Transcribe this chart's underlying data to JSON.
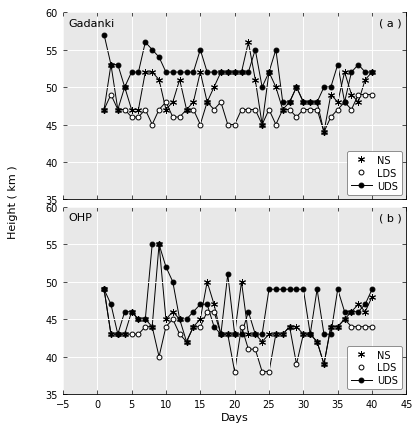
{
  "panel_a": {
    "title": "Gadanki",
    "label": "( a )",
    "NS": {
      "x": [
        1,
        2,
        3,
        4,
        5,
        6,
        7,
        8,
        9,
        10,
        11,
        12,
        13,
        14,
        15,
        16,
        17,
        18,
        19,
        20,
        21,
        22,
        23,
        24,
        25,
        26,
        27,
        28,
        29,
        30,
        31,
        32,
        33,
        34,
        35,
        36,
        37,
        38,
        39,
        40
      ],
      "y": [
        47,
        53,
        47,
        50,
        47,
        47,
        52,
        52,
        51,
        47,
        48,
        51,
        47,
        48,
        52,
        48,
        50,
        52,
        52,
        52,
        52,
        56,
        51,
        45,
        52,
        50,
        47,
        48,
        50,
        48,
        48,
        48,
        44,
        49,
        48,
        52,
        49,
        48,
        51,
        52
      ]
    },
    "LDS": {
      "x": [
        1,
        2,
        3,
        4,
        5,
        6,
        7,
        8,
        9,
        10,
        11,
        12,
        13,
        14,
        15,
        16,
        17,
        18,
        19,
        20,
        21,
        22,
        23,
        24,
        25,
        26,
        27,
        28,
        29,
        30,
        31,
        32,
        33,
        34,
        35,
        36,
        37,
        38,
        39,
        40
      ],
      "y": [
        47,
        49,
        47,
        47,
        46,
        46,
        47,
        45,
        47,
        48,
        46,
        46,
        47,
        47,
        45,
        48,
        47,
        48,
        45,
        45,
        47,
        47,
        47,
        45,
        47,
        45,
        47,
        47,
        46,
        47,
        47,
        47,
        44,
        46,
        47,
        48,
        47,
        49,
        49,
        49
      ]
    },
    "UDS": {
      "x": [
        1,
        2,
        3,
        4,
        5,
        6,
        7,
        8,
        9,
        10,
        11,
        12,
        13,
        14,
        15,
        16,
        17,
        18,
        19,
        20,
        21,
        22,
        23,
        24,
        25,
        26,
        27,
        28,
        29,
        30,
        31,
        32,
        33,
        34,
        35,
        36,
        37,
        38,
        39,
        40
      ],
      "y": [
        57,
        53,
        53,
        50,
        52,
        52,
        56,
        55,
        54,
        52,
        52,
        52,
        52,
        52,
        55,
        52,
        52,
        52,
        52,
        52,
        52,
        52,
        55,
        50,
        52,
        55,
        48,
        48,
        50,
        48,
        48,
        48,
        50,
        50,
        53,
        48,
        52,
        53,
        52,
        52
      ]
    }
  },
  "panel_b": {
    "title": "OHP",
    "label": "( b )",
    "NS": {
      "x": [
        1,
        2,
        3,
        4,
        5,
        6,
        7,
        8,
        9,
        10,
        11,
        12,
        13,
        14,
        15,
        16,
        17,
        18,
        19,
        20,
        21,
        22,
        23,
        24,
        25,
        26,
        27,
        28,
        29,
        30,
        31,
        32,
        33,
        34,
        35,
        36,
        37,
        38,
        39,
        40
      ],
      "y": [
        49,
        43,
        43,
        43,
        46,
        45,
        45,
        44,
        55,
        45,
        46,
        45,
        42,
        44,
        45,
        50,
        47,
        43,
        43,
        43,
        50,
        43,
        43,
        42,
        43,
        43,
        43,
        44,
        44,
        43,
        43,
        42,
        39,
        44,
        44,
        45,
        46,
        47,
        46,
        48
      ]
    },
    "LDS": {
      "x": [
        1,
        2,
        3,
        4,
        5,
        6,
        7,
        8,
        9,
        10,
        11,
        12,
        13,
        14,
        15,
        16,
        17,
        18,
        19,
        20,
        21,
        22,
        23,
        24,
        25,
        26,
        27,
        28,
        29,
        30,
        31,
        32,
        33,
        34,
        35,
        36,
        37,
        38,
        39,
        40
      ],
      "y": [
        49,
        43,
        43,
        43,
        43,
        43,
        44,
        44,
        40,
        44,
        45,
        43,
        42,
        44,
        44,
        46,
        46,
        43,
        43,
        38,
        44,
        41,
        41,
        38,
        38,
        43,
        43,
        44,
        39,
        43,
        43,
        42,
        39,
        44,
        44,
        45,
        44,
        44,
        44,
        44
      ]
    },
    "UDS": {
      "x": [
        1,
        2,
        3,
        4,
        5,
        6,
        7,
        8,
        9,
        10,
        11,
        12,
        13,
        14,
        15,
        16,
        17,
        18,
        19,
        20,
        21,
        22,
        23,
        24,
        25,
        26,
        27,
        28,
        29,
        30,
        31,
        32,
        33,
        34,
        35,
        36,
        37,
        38,
        39,
        40
      ],
      "y": [
        49,
        47,
        43,
        46,
        46,
        45,
        45,
        55,
        55,
        52,
        50,
        45,
        45,
        46,
        47,
        47,
        44,
        43,
        51,
        43,
        43,
        46,
        43,
        43,
        49,
        49,
        49,
        49,
        49,
        49,
        43,
        49,
        43,
        43,
        49,
        46,
        46,
        46,
        47,
        49
      ]
    }
  },
  "ylim": [
    35,
    60
  ],
  "xlim": [
    -5,
    45
  ],
  "xticks": [
    -5,
    0,
    5,
    10,
    15,
    20,
    25,
    30,
    35,
    40,
    45
  ],
  "yticks": [
    35,
    40,
    45,
    50,
    55,
    60
  ],
  "ylabel": "Height ( km )",
  "xlabel": "Days",
  "plot_bg_color": "#e8e8e8",
  "fig_bg_color": "#ffffff",
  "line_color": "#000000",
  "grid_color": "#ffffff"
}
